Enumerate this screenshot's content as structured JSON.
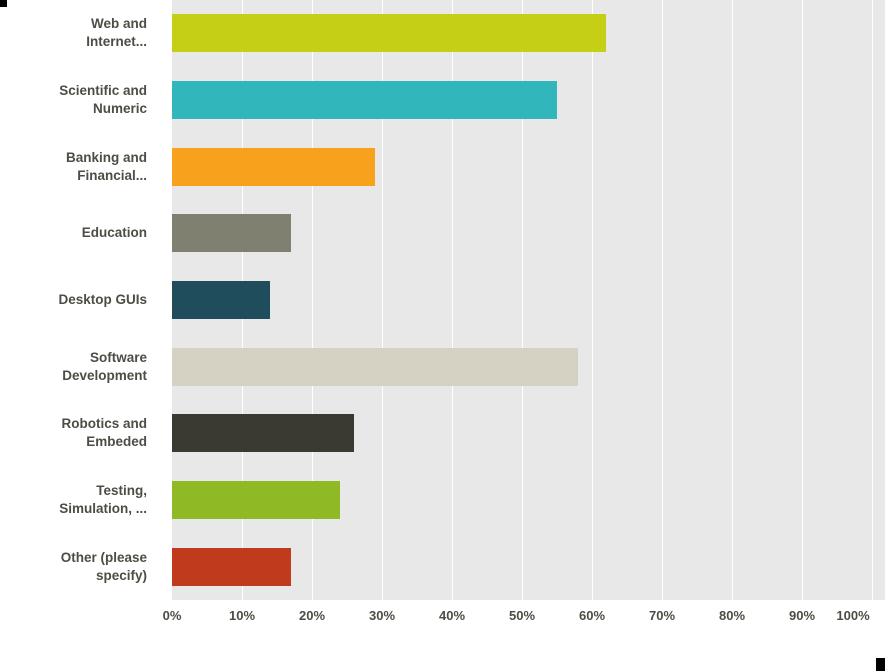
{
  "chart_data": {
    "type": "bar",
    "orientation": "horizontal",
    "title": "",
    "xlabel": "",
    "ylabel": "",
    "categories": [
      "Web and Internet...",
      "Scientific and Numeric",
      "Banking and Financial...",
      "Education",
      "Desktop GUIs",
      "Software Development",
      "Robotics and Embeded",
      "Testing, Simulation, ...",
      "Other (please specify)"
    ],
    "values": [
      62,
      55,
      29,
      17,
      14,
      58,
      26,
      24,
      17
    ],
    "value_unit": "%",
    "bar_colors": [
      "#c4cf16",
      "#31b6bc",
      "#f7a11d",
      "#7f8070",
      "#204d5c",
      "#d6d2c3",
      "#3a3a33",
      "#8fba26",
      "#c03a1e"
    ],
    "x_ticks": [
      "0%",
      "10%",
      "20%",
      "30%",
      "40%",
      "50%",
      "60%",
      "70%",
      "80%",
      "90%",
      "100%"
    ],
    "xlim": [
      0,
      100
    ],
    "grid": true,
    "legend": false,
    "colors": {
      "plot_background": "#e8e8e8",
      "gridline": "#ffffff",
      "label_text": "#4d4d45",
      "page_background": "#ffffff"
    }
  }
}
